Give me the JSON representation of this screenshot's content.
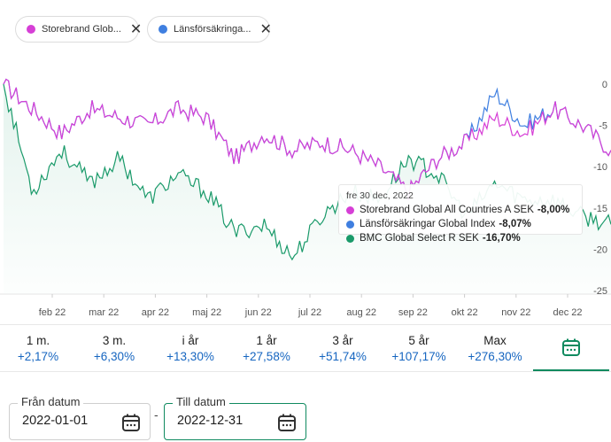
{
  "chips": [
    {
      "label": "Storebrand Glob...",
      "color": "#d63fd6"
    },
    {
      "label": "Länsförsäkringa...",
      "color": "#3f7fe0"
    }
  ],
  "chart_data": {
    "type": "line",
    "y_ticks": [
      "0",
      "-5",
      "-10",
      "-15",
      "-20",
      "-25"
    ],
    "x_ticks": [
      "feb 22",
      "mar 22",
      "apr 22",
      "maj 22",
      "jun 22",
      "jul 22",
      "aug 22",
      "sep 22",
      "okt 22",
      "nov 22",
      "dec 22"
    ],
    "ylim": [
      -25,
      0
    ],
    "grid": false,
    "series": [
      {
        "name": "Storebrand Global All Countries A SEK",
        "color": "#d63fd6",
        "values": [
          0,
          -3,
          -6,
          -3,
          -4,
          -5,
          -3,
          -4,
          -9,
          -6,
          -8,
          -7,
          -8,
          -10,
          -13,
          -9,
          -7,
          -4,
          -6,
          -3,
          -5,
          -8
        ]
      },
      {
        "name": "Länsförsäkringar Global Index",
        "color": "#3f7fe0",
        "values": [
          0,
          -3,
          -6,
          -3,
          -4,
          -5,
          -3,
          -4,
          -9,
          -6,
          -8,
          -7,
          -8,
          -10,
          -13,
          -9,
          -7,
          -1,
          -5,
          -3,
          -5,
          -8
        ]
      },
      {
        "name": "BMC Global Select R SEK",
        "color": "#1a9a6a",
        "values": [
          0,
          -13,
          -8,
          -12,
          -9,
          -14,
          -11,
          -13,
          -18,
          -17,
          -21,
          -16,
          -13,
          -14,
          -9,
          -11,
          -16,
          -12,
          -14,
          -14,
          -16,
          -17
        ]
      }
    ]
  },
  "tooltip": {
    "date": "fre 30 dec, 2022",
    "rows": [
      {
        "name": "Storebrand Global All Countries A SEK",
        "value": "-8,00%",
        "color": "#d63fd6"
      },
      {
        "name": "Länsförsäkringar Global Index",
        "value": "-8,07%",
        "color": "#3f7fe0"
      },
      {
        "name": "BMC Global Select R SEK",
        "value": "-16,70%",
        "color": "#1a9a6a"
      }
    ]
  },
  "periods": [
    {
      "label": "1 m.",
      "value": "+2,17%"
    },
    {
      "label": "3 m.",
      "value": "+6,30%"
    },
    {
      "label": "i år",
      "value": "+13,30%"
    },
    {
      "label": "1 år",
      "value": "+27,58%"
    },
    {
      "label": "3 år",
      "value": "+51,74%"
    },
    {
      "label": "5 år",
      "value": "+107,17%"
    },
    {
      "label": "Max",
      "value": "+276,30%"
    }
  ],
  "date_from": {
    "label": "Från datum",
    "value": "2022-01-01"
  },
  "date_to": {
    "label": "Till datum",
    "value": "2022-12-31"
  },
  "separator": "-",
  "icons": {
    "close": "close-icon",
    "calendar": "calendar-icon"
  },
  "colors": {
    "accent": "#0f8a5f",
    "value_blue": "#1565c0"
  }
}
